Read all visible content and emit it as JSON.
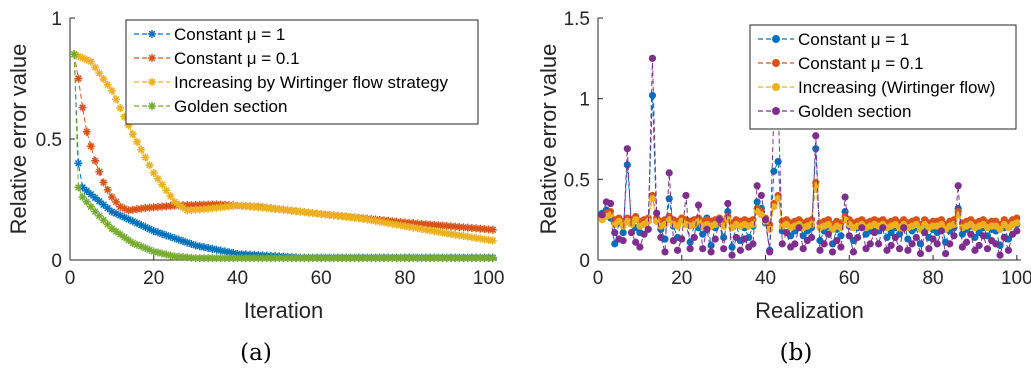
{
  "chart_data": [
    {
      "type": "line",
      "panel_label": "(a)",
      "xlabel": "Iteration",
      "ylabel": "Relative error value",
      "xlim": [
        0,
        102
      ],
      "ylim": [
        0,
        1
      ],
      "xticks": [
        0,
        20,
        40,
        60,
        80,
        100
      ],
      "yticks": [
        0,
        0.5,
        1
      ],
      "ytick_labels": [
        "0",
        "0.5",
        "1"
      ],
      "grid": false,
      "legend_position": "top-right",
      "series": [
        {
          "name": "Constant μ = 1",
          "color": "#0072BD",
          "marker": "asterisk",
          "model": {
            "start": 0.85,
            "drop_at": 2,
            "second": 0.4,
            "knots": [
              [
                3,
                0.3
              ],
              [
                10,
                0.2
              ],
              [
                20,
                0.12
              ],
              [
                30,
                0.06
              ],
              [
                40,
                0.025
              ],
              [
                55,
                0.01
              ],
              [
                101,
                0.01
              ]
            ]
          }
        },
        {
          "name": "Constant μ = 0.1",
          "color": "#D95319",
          "marker": "asterisk",
          "model": {
            "knots": [
              [
                1,
                0.85
              ],
              [
                2,
                0.75
              ],
              [
                3,
                0.63
              ],
              [
                4,
                0.53
              ],
              [
                6,
                0.41
              ],
              [
                8,
                0.32
              ],
              [
                10,
                0.26
              ],
              [
                12,
                0.22
              ],
              [
                14,
                0.205
              ],
              [
                18,
                0.215
              ],
              [
                25,
                0.225
              ],
              [
                35,
                0.23
              ],
              [
                45,
                0.22
              ],
              [
                60,
                0.19
              ],
              [
                80,
                0.155
              ],
              [
                101,
                0.125
              ]
            ]
          }
        },
        {
          "name": "Increasing by Wirtinger flow strategy",
          "color": "#EDB120",
          "marker": "asterisk",
          "model": {
            "knots": [
              [
                1,
                0.85
              ],
              [
                5,
                0.82
              ],
              [
                10,
                0.7
              ],
              [
                15,
                0.52
              ],
              [
                20,
                0.36
              ],
              [
                25,
                0.24
              ],
              [
                28,
                0.205
              ],
              [
                32,
                0.21
              ],
              [
                40,
                0.225
              ],
              [
                50,
                0.21
              ],
              [
                60,
                0.19
              ],
              [
                70,
                0.17
              ],
              [
                80,
                0.14
              ],
              [
                90,
                0.11
              ],
              [
                101,
                0.08
              ]
            ]
          }
        },
        {
          "name": "Golden section",
          "color": "#77AC30",
          "marker": "asterisk",
          "model": {
            "start": 0.85,
            "drop_at": 2,
            "second": 0.3,
            "knots": [
              [
                3,
                0.26
              ],
              [
                6,
                0.2
              ],
              [
                10,
                0.13
              ],
              [
                15,
                0.07
              ],
              [
                20,
                0.035
              ],
              [
                25,
                0.015
              ],
              [
                30,
                0.008
              ],
              [
                101,
                0.008
              ]
            ]
          }
        }
      ]
    },
    {
      "type": "scatter",
      "panel_label": "(b)",
      "xlabel": "Realization",
      "ylabel": "Relative error value",
      "xlim": [
        0,
        101
      ],
      "ylim": [
        0,
        1.5
      ],
      "xticks": [
        0,
        20,
        40,
        60,
        80,
        100
      ],
      "yticks": [
        0,
        0.5,
        1,
        1.5
      ],
      "ytick_labels": [
        "0",
        "0.5",
        "1",
        "1.5"
      ],
      "grid": false,
      "legend_position": "top-right",
      "series": [
        {
          "name": "Constant μ = 1",
          "color": "#0072BD",
          "marker": "circle",
          "values": [
            0.29,
            0.31,
            0.26,
            0.1,
            0.23,
            0.17,
            0.59,
            0.23,
            0.2,
            0.17,
            0.22,
            0.24,
            1.02,
            0.24,
            0.19,
            0.13,
            0.38,
            0.21,
            0.14,
            0.25,
            0.23,
            0.11,
            0.22,
            0.2,
            0.16,
            0.26,
            0.09,
            0.2,
            0.23,
            0.14,
            0.3,
            0.08,
            0.22,
            0.12,
            0.2,
            0.14,
            0.21,
            0.36,
            0.32,
            0.23,
            0.06,
            0.55,
            0.61,
            0.18,
            0.22,
            0.15,
            0.18,
            0.24,
            0.15,
            0.18,
            0.2,
            0.69,
            0.12,
            0.18,
            0.21,
            0.1,
            0.19,
            0.15,
            0.3,
            0.21,
            0.12,
            0.2,
            0.24,
            0.16,
            0.18,
            0.21,
            0.18,
            0.23,
            0.14,
            0.17,
            0.2,
            0.16,
            0.24,
            0.13,
            0.18,
            0.2,
            0.1,
            0.21,
            0.14,
            0.19,
            0.17,
            0.22,
            0.11,
            0.18,
            0.2,
            0.32,
            0.16,
            0.19,
            0.21,
            0.14,
            0.17,
            0.2,
            0.15,
            0.19,
            0.18,
            0.09,
            0.2,
            0.13,
            0.22,
            0.22
          ]
        },
        {
          "name": "Constant μ = 0.1",
          "color": "#D95319",
          "marker": "circle",
          "values": [
            0.27,
            0.29,
            0.3,
            0.25,
            0.26,
            0.24,
            0.26,
            0.25,
            0.27,
            0.24,
            0.25,
            0.26,
            0.4,
            0.26,
            0.24,
            0.25,
            0.27,
            0.25,
            0.24,
            0.26,
            0.25,
            0.24,
            0.25,
            0.26,
            0.24,
            0.25,
            0.24,
            0.25,
            0.26,
            0.24,
            0.27,
            0.23,
            0.25,
            0.24,
            0.25,
            0.24,
            0.25,
            0.32,
            0.3,
            0.26,
            0.22,
            0.35,
            0.4,
            0.24,
            0.25,
            0.23,
            0.24,
            0.25,
            0.23,
            0.24,
            0.25,
            0.48,
            0.23,
            0.24,
            0.25,
            0.22,
            0.24,
            0.23,
            0.27,
            0.25,
            0.23,
            0.24,
            0.25,
            0.23,
            0.24,
            0.25,
            0.24,
            0.25,
            0.23,
            0.24,
            0.25,
            0.23,
            0.25,
            0.23,
            0.24,
            0.25,
            0.22,
            0.25,
            0.23,
            0.24,
            0.24,
            0.25,
            0.22,
            0.24,
            0.25,
            0.3,
            0.23,
            0.24,
            0.25,
            0.23,
            0.24,
            0.25,
            0.23,
            0.24,
            0.24,
            0.22,
            0.25,
            0.23,
            0.25,
            0.26
          ]
        },
        {
          "name": "Increasing (Wirtinger flow)",
          "color": "#EDB120",
          "marker": "circle",
          "values": [
            0.25,
            0.27,
            0.28,
            0.22,
            0.24,
            0.21,
            0.24,
            0.22,
            0.25,
            0.21,
            0.22,
            0.24,
            0.38,
            0.24,
            0.21,
            0.22,
            0.25,
            0.22,
            0.21,
            0.24,
            0.22,
            0.21,
            0.22,
            0.24,
            0.21,
            0.22,
            0.21,
            0.22,
            0.24,
            0.21,
            0.25,
            0.2,
            0.22,
            0.21,
            0.22,
            0.21,
            0.22,
            0.3,
            0.28,
            0.24,
            0.19,
            0.33,
            0.38,
            0.21,
            0.22,
            0.2,
            0.21,
            0.22,
            0.2,
            0.21,
            0.22,
            0.46,
            0.2,
            0.21,
            0.22,
            0.19,
            0.21,
            0.2,
            0.25,
            0.22,
            0.2,
            0.21,
            0.22,
            0.2,
            0.21,
            0.22,
            0.21,
            0.22,
            0.2,
            0.21,
            0.22,
            0.2,
            0.22,
            0.2,
            0.21,
            0.22,
            0.19,
            0.22,
            0.2,
            0.21,
            0.21,
            0.22,
            0.19,
            0.21,
            0.22,
            0.28,
            0.2,
            0.21,
            0.22,
            0.2,
            0.21,
            0.22,
            0.2,
            0.21,
            0.21,
            0.19,
            0.22,
            0.2,
            0.22,
            0.23
          ]
        },
        {
          "name": "Golden section",
          "color": "#7E2F8E",
          "marker": "circle",
          "values": [
            0.28,
            0.36,
            0.35,
            0.17,
            0.13,
            0.12,
            0.69,
            0.17,
            0.11,
            0.08,
            0.16,
            0.19,
            1.25,
            0.29,
            0.14,
            0.05,
            0.54,
            0.12,
            0.06,
            0.13,
            0.4,
            0.07,
            0.14,
            0.34,
            0.07,
            0.19,
            0.05,
            0.13,
            0.25,
            0.07,
            0.35,
            0.03,
            0.14,
            0.06,
            0.13,
            0.08,
            0.1,
            0.46,
            0.4,
            0.25,
            0.05,
            0.93,
            0.98,
            0.1,
            0.17,
            0.08,
            0.1,
            0.2,
            0.07,
            0.12,
            0.14,
            0.77,
            0.06,
            0.1,
            0.16,
            0.05,
            0.12,
            0.08,
            0.39,
            0.15,
            0.05,
            0.14,
            0.2,
            0.07,
            0.1,
            0.17,
            0.1,
            0.2,
            0.06,
            0.09,
            0.14,
            0.07,
            0.2,
            0.06,
            0.1,
            0.14,
            0.04,
            0.17,
            0.07,
            0.13,
            0.1,
            0.18,
            0.04,
            0.1,
            0.15,
            0.46,
            0.08,
            0.11,
            0.16,
            0.06,
            0.09,
            0.15,
            0.07,
            0.12,
            0.1,
            0.03,
            0.14,
            0.06,
            0.16,
            0.18
          ]
        }
      ]
    }
  ]
}
